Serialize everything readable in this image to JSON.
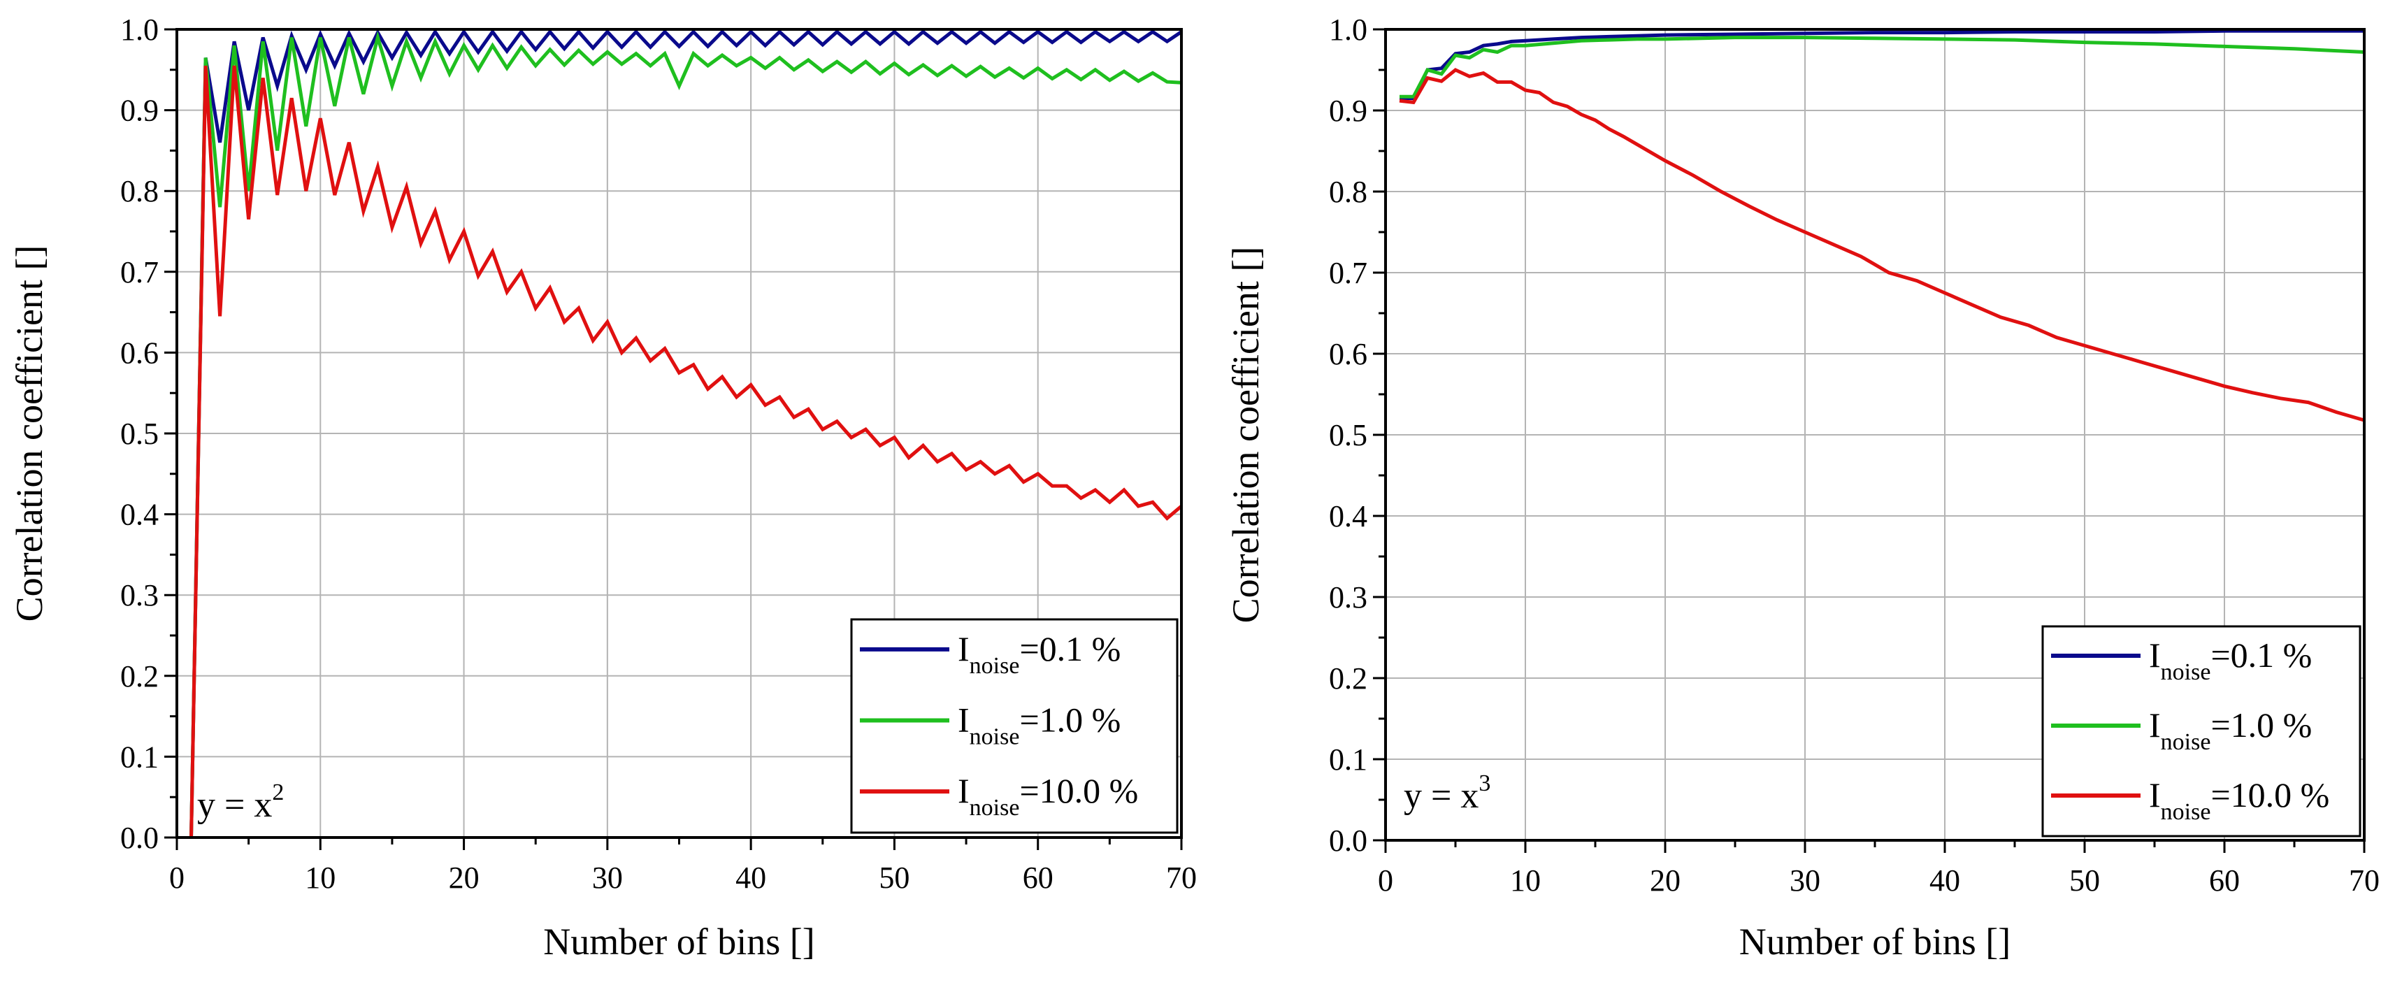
{
  "chart_data": [
    {
      "type": "line",
      "xlabel": "Number of bins []",
      "ylabel": "Correlation coefficient []",
      "xlim": [
        0,
        70
      ],
      "ylim": [
        0.0,
        1.0
      ],
      "xticks": [
        "0",
        "10",
        "20",
        "30",
        "40",
        "50",
        "60",
        "70"
      ],
      "yticks": [
        "0.0",
        "0.1",
        "0.2",
        "0.3",
        "0.4",
        "0.5",
        "0.6",
        "0.7",
        "0.8",
        "0.9",
        "1.0"
      ],
      "grid": true,
      "legend_position": "bottom-right",
      "annotation": {
        "base": "y = x",
        "exponent": "2"
      },
      "series": [
        {
          "legend_main": "I",
          "legend_sub": "noise",
          "legend_value": "=0.1 %",
          "color": "#0a0a8c",
          "x": [
            1,
            2,
            3,
            4,
            5,
            6,
            7,
            8,
            9,
            10,
            11,
            12,
            13,
            14,
            15,
            16,
            17,
            18,
            19,
            20,
            21,
            22,
            23,
            24,
            25,
            26,
            27,
            28,
            29,
            30,
            31,
            32,
            33,
            34,
            35,
            36,
            37,
            38,
            39,
            40,
            41,
            42,
            43,
            44,
            45,
            46,
            47,
            48,
            49,
            50,
            51,
            52,
            53,
            54,
            55,
            56,
            57,
            58,
            59,
            60,
            61,
            62,
            63,
            64,
            65,
            66,
            67,
            68,
            69,
            70
          ],
          "y": [
            0.0,
            0.965,
            0.86,
            0.985,
            0.9,
            0.99,
            0.93,
            0.992,
            0.95,
            0.994,
            0.955,
            0.995,
            0.96,
            0.996,
            0.965,
            0.996,
            0.968,
            0.997,
            0.97,
            0.997,
            0.972,
            0.997,
            0.973,
            0.997,
            0.975,
            0.997,
            0.976,
            0.997,
            0.977,
            0.997,
            0.978,
            0.997,
            0.978,
            0.997,
            0.979,
            0.997,
            0.979,
            0.997,
            0.98,
            0.997,
            0.98,
            0.997,
            0.981,
            0.997,
            0.981,
            0.997,
            0.982,
            0.997,
            0.982,
            0.997,
            0.982,
            0.997,
            0.983,
            0.997,
            0.983,
            0.997,
            0.983,
            0.997,
            0.984,
            0.997,
            0.984,
            0.997,
            0.984,
            0.997,
            0.985,
            0.997,
            0.985,
            0.997,
            0.985,
            0.997
          ]
        },
        {
          "legend_main": "I",
          "legend_sub": "noise",
          "legend_value": "=1.0 %",
          "color": "#1fbf1f",
          "x": [
            1,
            2,
            3,
            4,
            5,
            6,
            7,
            8,
            9,
            10,
            11,
            12,
            13,
            14,
            15,
            16,
            17,
            18,
            19,
            20,
            21,
            22,
            23,
            24,
            25,
            26,
            27,
            28,
            29,
            30,
            31,
            32,
            33,
            34,
            35,
            36,
            37,
            38,
            39,
            40,
            41,
            42,
            43,
            44,
            45,
            46,
            47,
            48,
            49,
            50,
            51,
            52,
            53,
            54,
            55,
            56,
            57,
            58,
            59,
            60,
            61,
            62,
            63,
            64,
            65,
            66,
            67,
            68,
            69,
            70
          ],
          "y": [
            0.0,
            0.965,
            0.78,
            0.98,
            0.8,
            0.985,
            0.85,
            0.99,
            0.88,
            0.99,
            0.905,
            0.99,
            0.92,
            0.99,
            0.93,
            0.985,
            0.94,
            0.985,
            0.945,
            0.98,
            0.95,
            0.98,
            0.952,
            0.978,
            0.955,
            0.975,
            0.956,
            0.974,
            0.957,
            0.972,
            0.957,
            0.97,
            0.955,
            0.97,
            0.93,
            0.97,
            0.955,
            0.968,
            0.955,
            0.965,
            0.952,
            0.965,
            0.95,
            0.962,
            0.948,
            0.96,
            0.947,
            0.96,
            0.945,
            0.958,
            0.944,
            0.956,
            0.943,
            0.955,
            0.942,
            0.954,
            0.941,
            0.952,
            0.94,
            0.952,
            0.939,
            0.95,
            0.938,
            0.95,
            0.937,
            0.948,
            0.936,
            0.946,
            0.935,
            0.934
          ]
        },
        {
          "legend_main": "I",
          "legend_sub": "noise",
          "legend_value": "=10.0 %",
          "color": "#e01010",
          "x": [
            1,
            2,
            3,
            4,
            5,
            6,
            7,
            8,
            9,
            10,
            11,
            12,
            13,
            14,
            15,
            16,
            17,
            18,
            19,
            20,
            21,
            22,
            23,
            24,
            25,
            26,
            27,
            28,
            29,
            30,
            31,
            32,
            33,
            34,
            35,
            36,
            37,
            38,
            39,
            40,
            41,
            42,
            43,
            44,
            45,
            46,
            47,
            48,
            49,
            50,
            51,
            52,
            53,
            54,
            55,
            56,
            57,
            58,
            59,
            60,
            61,
            62,
            63,
            64,
            65,
            66,
            67,
            68,
            69,
            70
          ],
          "y": [
            0.0,
            0.955,
            0.645,
            0.955,
            0.765,
            0.94,
            0.795,
            0.915,
            0.8,
            0.89,
            0.795,
            0.86,
            0.775,
            0.83,
            0.755,
            0.805,
            0.735,
            0.775,
            0.715,
            0.75,
            0.695,
            0.725,
            0.675,
            0.7,
            0.655,
            0.68,
            0.638,
            0.655,
            0.615,
            0.638,
            0.6,
            0.618,
            0.59,
            0.605,
            0.575,
            0.585,
            0.555,
            0.57,
            0.545,
            0.56,
            0.535,
            0.545,
            0.52,
            0.53,
            0.505,
            0.515,
            0.495,
            0.505,
            0.485,
            0.495,
            0.47,
            0.485,
            0.465,
            0.475,
            0.455,
            0.465,
            0.45,
            0.46,
            0.44,
            0.45,
            0.435,
            0.435,
            0.42,
            0.43,
            0.415,
            0.43,
            0.41,
            0.415,
            0.395,
            0.41
          ]
        }
      ]
    },
    {
      "type": "line",
      "xlabel": "Number of bins []",
      "ylabel": "Correlation coefficient []",
      "xlim": [
        0,
        70
      ],
      "ylim": [
        0.0,
        1.0
      ],
      "xticks": [
        "0",
        "10",
        "20",
        "30",
        "40",
        "50",
        "60",
        "70"
      ],
      "yticks": [
        "0.0",
        "0.1",
        "0.2",
        "0.3",
        "0.4",
        "0.5",
        "0.6",
        "0.7",
        "0.8",
        "0.9",
        "1.0"
      ],
      "grid": true,
      "legend_position": "bottom-right",
      "annotation": {
        "base": "y = x",
        "exponent": "3"
      },
      "series": [
        {
          "legend_main": "I",
          "legend_sub": "noise",
          "legend_value": "=0.1 %",
          "color": "#0a0a8c",
          "x": [
            1,
            2,
            3,
            4,
            5,
            6,
            7,
            8,
            9,
            10,
            12,
            14,
            16,
            18,
            20,
            25,
            30,
            35,
            40,
            45,
            50,
            55,
            60,
            65,
            70
          ],
          "y": [
            0.915,
            0.915,
            0.95,
            0.952,
            0.97,
            0.972,
            0.98,
            0.982,
            0.985,
            0.986,
            0.988,
            0.99,
            0.991,
            0.992,
            0.993,
            0.994,
            0.995,
            0.996,
            0.996,
            0.997,
            0.997,
            0.997,
            0.998,
            0.998,
            0.998
          ]
        },
        {
          "legend_main": "I",
          "legend_sub": "noise",
          "legend_value": "=1.0 %",
          "color": "#1fbf1f",
          "x": [
            1,
            2,
            3,
            4,
            5,
            6,
            7,
            8,
            9,
            10,
            12,
            14,
            16,
            18,
            20,
            25,
            30,
            35,
            40,
            45,
            50,
            55,
            60,
            65,
            70
          ],
          "y": [
            0.917,
            0.917,
            0.95,
            0.945,
            0.968,
            0.965,
            0.975,
            0.972,
            0.98,
            0.98,
            0.983,
            0.986,
            0.987,
            0.988,
            0.988,
            0.99,
            0.99,
            0.989,
            0.988,
            0.987,
            0.984,
            0.982,
            0.979,
            0.976,
            0.972
          ]
        },
        {
          "legend_main": "I",
          "legend_sub": "noise",
          "legend_value": "=10.0 %",
          "color": "#e01010",
          "x": [
            1,
            2,
            3,
            4,
            5,
            6,
            7,
            8,
            9,
            10,
            11,
            12,
            13,
            14,
            15,
            16,
            17,
            18,
            19,
            20,
            22,
            24,
            26,
            28,
            30,
            32,
            34,
            36,
            38,
            40,
            42,
            44,
            46,
            48,
            50,
            52,
            54,
            56,
            58,
            60,
            62,
            64,
            66,
            68,
            70
          ],
          "y": [
            0.912,
            0.91,
            0.94,
            0.936,
            0.95,
            0.942,
            0.946,
            0.935,
            0.935,
            0.925,
            0.922,
            0.91,
            0.905,
            0.895,
            0.888,
            0.877,
            0.868,
            0.858,
            0.848,
            0.838,
            0.82,
            0.8,
            0.782,
            0.765,
            0.75,
            0.735,
            0.72,
            0.7,
            0.69,
            0.675,
            0.66,
            0.645,
            0.635,
            0.62,
            0.61,
            0.6,
            0.59,
            0.58,
            0.57,
            0.56,
            0.552,
            0.545,
            0.54,
            0.528,
            0.518
          ]
        }
      ]
    }
  ]
}
